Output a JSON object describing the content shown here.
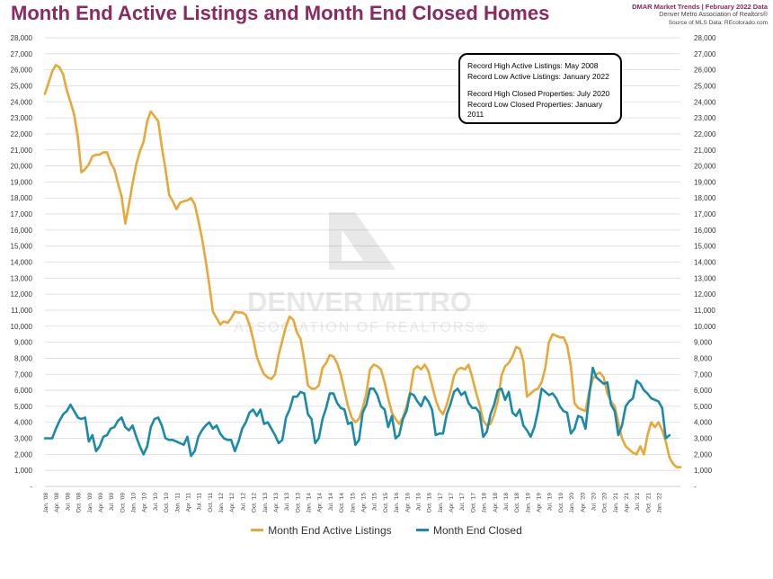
{
  "header": {
    "title": "Month End Active Listings and Month End Closed Homes",
    "brand_line1": "DMAR Market Trends | February 2022 Data",
    "brand_line2": "Denver Metro Association of Realtors®",
    "brand_line3": "Source of MLS Data: REcolorado.com"
  },
  "watermark": {
    "line1": "DENVER METRO",
    "line2": "ASSOCIATION OF REALTORS®"
  },
  "notes": {
    "line1": "Record High Active Listings: May 2008",
    "line2": "Record Low Active Listings: January 2022",
    "line3": "Record High Closed Properties: July 2020",
    "line4": "Record Low Closed Properties: January 2011"
  },
  "colors": {
    "active": "#e8a838",
    "closed": "#1a8aaa",
    "title": "#8b2a5e",
    "grid": "#d9d9d9"
  },
  "chart_data": {
    "type": "line",
    "title": "Month End Active Listings and Month End Closed Homes",
    "xlabel": "",
    "ylabel": "",
    "ylim": [
      0,
      28000
    ],
    "yticks": [
      0,
      1000,
      2000,
      3000,
      4000,
      5000,
      6000,
      7000,
      8000,
      9000,
      10000,
      11000,
      12000,
      13000,
      14000,
      15000,
      16000,
      17000,
      18000,
      19000,
      20000,
      21000,
      22000,
      23000,
      24000,
      25000,
      26000,
      27000,
      28000
    ],
    "ytick_labels": [
      "-",
      "1,000",
      "2,000",
      "3,000",
      "4,000",
      "5,000",
      "6,000",
      "7,000",
      "8,000",
      "9,000",
      "10,000",
      "11,000",
      "12,000",
      "13,000",
      "14,000",
      "15,000",
      "16,000",
      "17,000",
      "18,000",
      "19,000",
      "20,000",
      "21,000",
      "22,000",
      "23,000",
      "24,000",
      "25,000",
      "26,000",
      "27,000",
      "28,000"
    ],
    "x_labels": [
      "Jan. '08",
      "Apr. '08",
      "Jul. '08",
      "Oct. '08",
      "Jan. '09",
      "Apr. '09",
      "Jul. '09",
      "Oct. '09",
      "Jan. '10",
      "Apr. '10",
      "Jul. '10",
      "Oct. '10",
      "Jan. '11",
      "Apr. '11",
      "Jul. '11",
      "Oct. '11",
      "Jan. '12",
      "Apr. '12",
      "Jul. '12",
      "Oct. '12",
      "Jan. '13",
      "Apr. '13",
      "Jul. '13",
      "Oct. '13",
      "Jan. '14",
      "Apr. '14",
      "Jul. '14",
      "Oct. '14",
      "Jan. '15",
      "Apr. '15",
      "Jul. '15",
      "Oct. '15",
      "Jan. '16",
      "Apr. '16",
      "Jul. '16",
      "Oct. '16",
      "Jan. '17",
      "Apr. '17",
      "Jul. '17",
      "Oct. '17",
      "Jan. '18",
      "Apr. '18",
      "Jul. '18",
      "Oct. '18",
      "Jan. '19",
      "Apr. '19",
      "Jul. '19",
      "Oct. '19",
      "Jan. '20",
      "Apr. '20",
      "Jul. '20",
      "Oct. '20",
      "Jan. '21",
      "Apr. '21",
      "Jul. '21",
      "Oct. '21",
      "Jan. '22"
    ],
    "legend_position": "bottom",
    "series": [
      {
        "name": "Month End Active Listings",
        "color": "#e8a838",
        "values": [
          24500,
          25200,
          25900,
          26300,
          26150,
          25700,
          24700,
          24000,
          23200,
          21800,
          19600,
          19800,
          20100,
          20600,
          20700,
          20700,
          20850,
          20850,
          20200,
          19800,
          18900,
          18100,
          16400,
          17600,
          18900,
          20100,
          20900,
          21500,
          22800,
          23400,
          23100,
          22800,
          21200,
          19800,
          18200,
          17800,
          17300,
          17700,
          17800,
          17850,
          18000,
          17600,
          16600,
          15500,
          14100,
          12600,
          10900,
          10500,
          10100,
          10300,
          10200,
          10500,
          10900,
          10850,
          10850,
          10700,
          10100,
          9200,
          8100,
          7500,
          7000,
          6800,
          6700,
          7000,
          8200,
          9100,
          10000,
          10600,
          10400,
          9600,
          9200,
          7900,
          6300,
          6100,
          6100,
          6300,
          7400,
          7700,
          8200,
          8100,
          7700,
          7000,
          6000,
          5000,
          4300,
          4000,
          4200,
          4900,
          5800,
          7300,
          7600,
          7500,
          7300,
          6500,
          5500,
          4600,
          4200,
          3900,
          4300,
          5000,
          5900,
          7300,
          7500,
          7300,
          7600,
          7200,
          6300,
          5400,
          4800,
          4500,
          5100,
          5900,
          6900,
          7300,
          7400,
          7300,
          7600,
          6800,
          5900,
          5100,
          4100,
          3800,
          3900,
          4500,
          5300,
          6900,
          7500,
          7700,
          8100,
          8700,
          8600,
          7800,
          5600,
          5800,
          6000,
          6100,
          6500,
          7400,
          9000,
          9500,
          9400,
          9300,
          9300,
          8800,
          7500,
          5200,
          4900,
          4800,
          4700,
          5900,
          6700,
          7000,
          7100,
          6800,
          5800,
          5300,
          5000,
          4000,
          3000,
          2500,
          2300,
          2100,
          2000,
          2500,
          2000,
          3200,
          4000,
          3700,
          4000,
          3500,
          2800,
          1800,
          1400,
          1200,
          1200
        ]
      },
      {
        "name": "Month End Closed",
        "color": "#1a8aaa",
        "values": [
          3000,
          3000,
          3000,
          3600,
          4100,
          4500,
          4700,
          5100,
          4700,
          4300,
          4200,
          4300,
          2800,
          3200,
          2200,
          2500,
          3100,
          3200,
          3600,
          3700,
          4100,
          4300,
          3700,
          3500,
          3800,
          3100,
          2500,
          2000,
          2500,
          3700,
          4200,
          4300,
          3800,
          3000,
          2900,
          2900,
          2800,
          2700,
          2600,
          3100,
          1900,
          2200,
          3100,
          3500,
          3800,
          4000,
          3600,
          3800,
          3300,
          3000,
          2900,
          2900,
          2200,
          2800,
          3600,
          4000,
          4600,
          4800,
          4400,
          4800,
          3900,
          4000,
          3600,
          3200,
          2700,
          2900,
          4300,
          4800,
          5600,
          5600,
          5900,
          5800,
          4500,
          4200,
          2700,
          3000,
          4200,
          4900,
          5800,
          5800,
          5200,
          4900,
          4800,
          3900,
          4000,
          2600,
          2900,
          4600,
          5100,
          6100,
          6100,
          5700,
          5000,
          4800,
          3700,
          4400,
          3000,
          3200,
          4200,
          4700,
          5800,
          5700,
          5300,
          5000,
          5600,
          5300,
          4800,
          3200,
          3300,
          3300,
          4500,
          5100,
          5900,
          6100,
          5700,
          5900,
          5200,
          4900,
          4900,
          4600,
          3100,
          3400,
          4500,
          5100,
          6000,
          6100,
          5400,
          5900,
          4600,
          4400,
          4800,
          3800,
          3500,
          3100,
          3700,
          4700,
          6100,
          5900,
          5700,
          5800,
          5500,
          5000,
          4700,
          4600,
          3300,
          3600,
          4400,
          4300,
          3600,
          5600,
          7400,
          6800,
          6600,
          6400,
          6500,
          5100,
          4700,
          3200,
          3800,
          5000,
          5300,
          5500,
          6600,
          6400,
          6000,
          5800,
          5500,
          5400,
          5300,
          4900,
          3000,
          3200
        ]
      }
    ]
  }
}
